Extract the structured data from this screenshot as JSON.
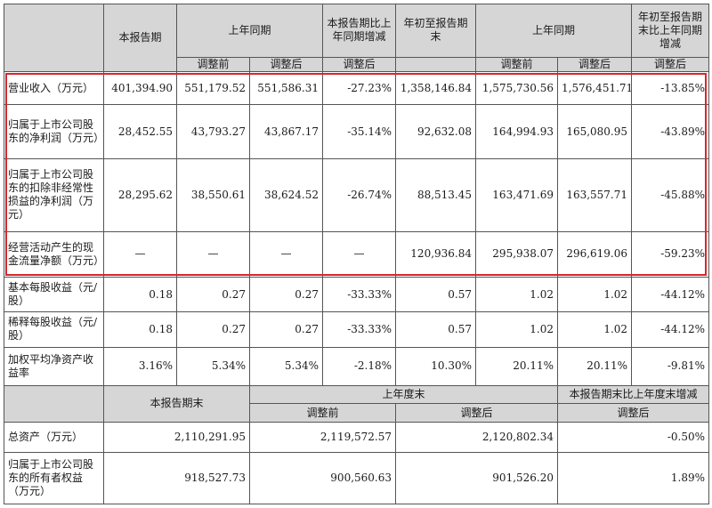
{
  "highlight_color": "#d9262c",
  "header": {
    "current_period": "本报告期",
    "prior_period": "上年同期",
    "yoy_change": "本报告期比上年同期增减",
    "ytd": "年初至报告期末",
    "prior_ytd": "上年同期",
    "ytd_change": "年初至报告期末比上年同期增减",
    "before_adj": "调整前",
    "after_adj": "调整后"
  },
  "rows": [
    {
      "label": "营业收入（万元）",
      "v1": "401,394.90",
      "v2": "551,179.52",
      "v3": "551,586.31",
      "v4": "-27.23%",
      "v5": "1,358,146.84",
      "v6": "1,575,730.56",
      "v7": "1,576,451.71",
      "v8": "-13.85%"
    },
    {
      "label": "归属于上市公司股东的净利润（万元）",
      "v1": "28,452.55",
      "v2": "43,793.27",
      "v3": "43,867.17",
      "v4": "-35.14%",
      "v5": "92,632.08",
      "v6": "164,994.93",
      "v7": "165,080.95",
      "v8": "-43.89%"
    },
    {
      "label": "归属于上市公司股东的扣除非经常性损益的净利润（万元）",
      "v1": "28,295.62",
      "v2": "38,550.61",
      "v3": "38,624.52",
      "v4": "-26.74%",
      "v5": "88,513.45",
      "v6": "163,471.69",
      "v7": "163,557.71",
      "v8": "-45.88%"
    },
    {
      "label": "经营活动产生的现金流量净额（万元）",
      "v1": "—",
      "v2": "—",
      "v3": "—",
      "v4": "—",
      "v5": "120,936.84",
      "v6": "295,938.07",
      "v7": "296,619.06",
      "v8": "-59.23%"
    },
    {
      "label": "基本每股收益（元/股）",
      "v1": "0.18",
      "v2": "0.27",
      "v3": "0.27",
      "v4": "-33.33%",
      "v5": "0.57",
      "v6": "1.02",
      "v7": "1.02",
      "v8": "-44.12%"
    },
    {
      "label": "稀释每股收益（元/股）",
      "v1": "0.18",
      "v2": "0.27",
      "v3": "0.27",
      "v4": "-33.33%",
      "v5": "0.57",
      "v6": "1.02",
      "v7": "1.02",
      "v8": "-44.12%"
    },
    {
      "label": "加权平均净资产收益率",
      "v1": "3.16%",
      "v2": "5.34%",
      "v3": "5.34%",
      "v4": "-2.18%",
      "v5": "10.30%",
      "v6": "20.11%",
      "v7": "20.11%",
      "v8": "-9.81%"
    }
  ],
  "balance_header": {
    "period_end": "本报告期末",
    "prior_year_end": "上年度末",
    "change": "本报告期末比上年度末增减",
    "before_adj": "调整前",
    "after_adj": "调整后",
    "change_after_adj": "调整后"
  },
  "balance_rows": [
    {
      "label": "总资产（万元）",
      "period_end": "2,110,291.95",
      "before_adj": "2,119,572.57",
      "after_adj": "2,120,802.34",
      "change": "-0.50%"
    },
    {
      "label": "归属于上市公司股东的所有者权益（万元）",
      "period_end": "918,527.73",
      "before_adj": "900,560.63",
      "after_adj": "901,526.20",
      "change": "1.89%"
    }
  ]
}
